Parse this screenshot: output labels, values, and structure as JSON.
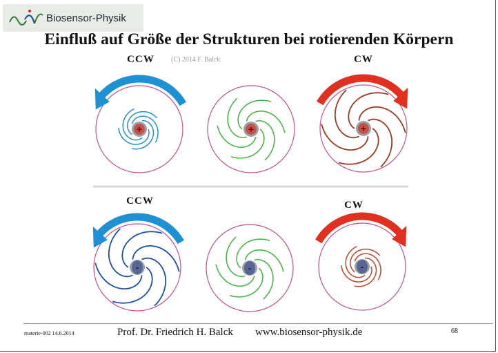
{
  "logo": {
    "text": "Biosensor-Physik"
  },
  "title": "Einfluß auf Größe der Strukturen bei rotierenden Körpern",
  "copyright": "(C) 2014 F. Balck",
  "rows": [
    {
      "panels": [
        {
          "label": "CCW",
          "arrow": "ccw",
          "arrow_color": "#1e90d4",
          "spiral_color": "#2a8fc9",
          "spiral_size": "small",
          "charge": "+"
        },
        {
          "label": "",
          "arrow": "none",
          "arrow_color": "",
          "spiral_color": "#3fb33f",
          "spiral_size": "medium",
          "charge": "+"
        },
        {
          "label": "CW",
          "arrow": "cw",
          "arrow_color": "#e03020",
          "spiral_color": "#9b3a22",
          "spiral_size": "large",
          "charge": "+"
        }
      ]
    },
    {
      "panels": [
        {
          "label": "CCW",
          "arrow": "ccw",
          "arrow_color": "#1e90d4",
          "spiral_color": "#1f4fa0",
          "spiral_size": "large",
          "charge": "-"
        },
        {
          "label": "",
          "arrow": "none",
          "arrow_color": "",
          "spiral_color": "#3fb33f",
          "spiral_size": "medium",
          "charge": "-"
        },
        {
          "label": "CW",
          "arrow": "cw",
          "arrow_color": "#e03020",
          "spiral_color": "#c0452a",
          "spiral_size": "small",
          "charge": "-"
        }
      ]
    }
  ],
  "footer": {
    "date": "materie-002 14.6.2014",
    "author": "Prof. Dr. Friedrich H. Balck",
    "url": "www.biosensor-physik.de",
    "page": "68"
  }
}
